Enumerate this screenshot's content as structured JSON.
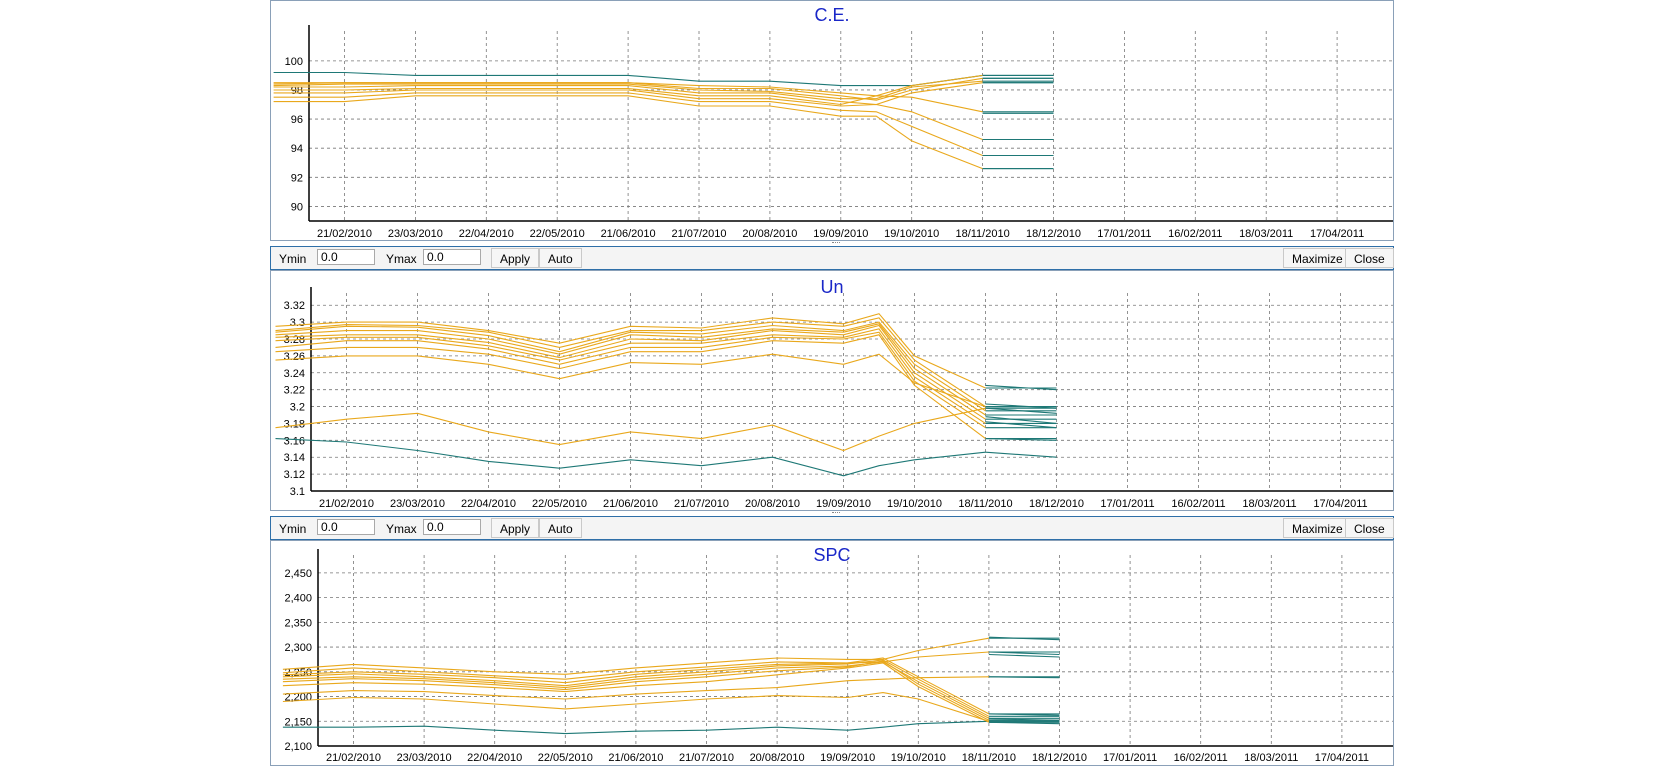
{
  "toolbar": {
    "ymin_label": "Ymin",
    "ymin_value": "0.0",
    "ymax_label": "Ymax",
    "ymax_value": "0.0",
    "apply_label": "Apply",
    "auto_label": "Auto",
    "maximize_label": "Maximize",
    "close_label": "Close"
  },
  "colors": {
    "orange": "#e9a81c",
    "teal": "#1e7876",
    "title": "#1a27c8"
  },
  "chart_data": [
    {
      "type": "line",
      "title": "C.E.",
      "xlabel": "",
      "ylabel": "",
      "x_ticks": [
        "21/02/2010",
        "23/03/2010",
        "22/04/2010",
        "22/05/2010",
        "21/06/2010",
        "21/07/2010",
        "20/08/2010",
        "19/09/2010",
        "19/10/2010",
        "18/11/2010",
        "18/12/2010",
        "17/01/2011",
        "16/02/2011",
        "18/03/2011",
        "17/04/2011"
      ],
      "y_ticks": [
        "90",
        "92",
        "94",
        "96",
        "98",
        "100"
      ],
      "ylim": [
        89,
        101.5
      ],
      "grid": true,
      "x_dates": [
        "2010-01-22",
        "2010-02-21",
        "2010-03-23",
        "2010-04-22",
        "2010-05-22",
        "2010-06-21",
        "2010-07-21",
        "2010-08-20",
        "2010-09-19",
        "2010-10-04",
        "2010-10-19",
        "2010-11-18",
        "2010-12-18"
      ],
      "series": [
        {
          "color": "orange",
          "values": [
            98.5,
            98.5,
            98.5,
            98.5,
            98.5,
            98.5,
            98.3,
            98.2,
            97.8,
            97.6,
            98.3,
            99.0,
            99.0
          ]
        },
        {
          "color": "orange",
          "values": [
            98.4,
            98.5,
            98.5,
            98.5,
            98.5,
            98.5,
            98.1,
            98.1,
            97.6,
            97.3,
            98.0,
            98.8,
            98.8
          ]
        },
        {
          "color": "orange",
          "values": [
            98.3,
            98.4,
            98.4,
            98.4,
            98.4,
            98.4,
            98.0,
            97.9,
            97.4,
            97.4,
            98.2,
            98.6,
            98.6
          ]
        },
        {
          "color": "orange",
          "values": [
            98.2,
            98.2,
            98.3,
            98.3,
            98.3,
            98.3,
            97.8,
            97.8,
            97.2,
            97.0,
            97.8,
            98.5,
            98.5
          ]
        },
        {
          "color": "orange",
          "values": [
            98.0,
            98.0,
            98.1,
            98.1,
            98.1,
            98.1,
            97.6,
            97.6,
            97.0,
            97.6,
            97.5,
            96.5,
            96.5
          ]
        },
        {
          "color": "orange",
          "values": [
            97.8,
            97.8,
            98.0,
            98.0,
            98.0,
            98.0,
            97.4,
            97.4,
            96.9,
            97.0,
            96.5,
            94.6,
            94.6
          ]
        },
        {
          "color": "orange",
          "values": [
            97.5,
            97.5,
            97.8,
            97.8,
            97.8,
            97.8,
            97.2,
            97.2,
            96.6,
            96.5,
            95.5,
            93.5,
            93.5
          ]
        },
        {
          "color": "orange",
          "values": [
            97.2,
            97.2,
            97.6,
            97.6,
            97.6,
            97.6,
            96.9,
            96.9,
            96.2,
            96.2,
            94.5,
            92.6,
            92.6
          ]
        },
        {
          "color": "teal",
          "values": [
            99.2,
            99.2,
            99.0,
            99.0,
            99.0,
            99.0,
            98.6,
            98.6,
            98.3,
            98.3,
            98.3,
            99.0,
            99.0
          ]
        },
        {
          "color": "teal",
          "values": [
            null,
            null,
            null,
            null,
            null,
            null,
            null,
            null,
            null,
            null,
            null,
            98.8,
            98.8
          ]
        },
        {
          "color": "teal",
          "values": [
            null,
            null,
            null,
            null,
            null,
            null,
            null,
            null,
            null,
            null,
            null,
            98.5,
            98.5
          ]
        },
        {
          "color": "teal",
          "values": [
            null,
            null,
            null,
            null,
            null,
            null,
            null,
            null,
            null,
            null,
            null,
            96.4,
            96.4
          ]
        },
        {
          "color": "teal",
          "values": [
            null,
            null,
            null,
            null,
            null,
            null,
            null,
            null,
            null,
            null,
            null,
            94.6,
            94.6
          ]
        },
        {
          "color": "teal",
          "values": [
            null,
            null,
            null,
            null,
            null,
            null,
            null,
            null,
            null,
            null,
            null,
            93.5,
            93.5
          ]
        },
        {
          "color": "teal",
          "values": [
            null,
            null,
            null,
            null,
            null,
            null,
            null,
            null,
            null,
            null,
            null,
            92.6,
            92.6
          ]
        }
      ]
    },
    {
      "type": "line",
      "title": "Un",
      "xlabel": "",
      "ylabel": "",
      "x_ticks": [
        "21/02/2010",
        "23/03/2010",
        "22/04/2010",
        "22/05/2010",
        "21/06/2010",
        "21/07/2010",
        "20/08/2010",
        "19/09/2010",
        "19/10/2010",
        "18/11/2010",
        "18/12/2010",
        "17/01/2011",
        "16/02/2011",
        "18/03/2011",
        "17/04/2011"
      ],
      "y_ticks": [
        "3.1",
        "3.12",
        "3.14",
        "3.16",
        "3.18",
        "3.2",
        "3.22",
        "3.24",
        "3.26",
        "3.28",
        "3.3",
        "3.32"
      ],
      "ylim": [
        3.1,
        3.325
      ],
      "grid": true,
      "x_dates": [
        "2010-01-22",
        "2010-02-21",
        "2010-03-23",
        "2010-04-22",
        "2010-05-22",
        "2010-06-21",
        "2010-07-21",
        "2010-08-20",
        "2010-09-19",
        "2010-10-04",
        "2010-10-19",
        "2010-11-18",
        "2010-12-18"
      ],
      "series": [
        {
          "color": "orange",
          "values": [
            3.295,
            3.3,
            3.3,
            3.29,
            3.275,
            3.295,
            3.293,
            3.305,
            3.298,
            3.31,
            3.26,
            3.222,
            3.222
          ]
        },
        {
          "color": "orange",
          "values": [
            3.29,
            3.297,
            3.296,
            3.288,
            3.27,
            3.29,
            3.29,
            3.3,
            3.295,
            3.305,
            3.255,
            3.2,
            3.2
          ]
        },
        {
          "color": "orange",
          "values": [
            3.288,
            3.295,
            3.294,
            3.284,
            3.265,
            3.288,
            3.286,
            3.296,
            3.29,
            3.3,
            3.25,
            3.195,
            3.195
          ]
        },
        {
          "color": "orange",
          "values": [
            3.285,
            3.29,
            3.29,
            3.28,
            3.262,
            3.285,
            3.282,
            3.292,
            3.288,
            3.298,
            3.245,
            3.19,
            3.19
          ]
        },
        {
          "color": "orange",
          "values": [
            3.282,
            3.285,
            3.285,
            3.276,
            3.258,
            3.28,
            3.278,
            3.29,
            3.285,
            3.296,
            3.24,
            3.185,
            3.185
          ]
        },
        {
          "color": "orange",
          "values": [
            3.278,
            3.282,
            3.282,
            3.272,
            3.255,
            3.275,
            3.275,
            3.285,
            3.282,
            3.292,
            3.235,
            3.18,
            3.18
          ]
        },
        {
          "color": "orange",
          "values": [
            3.27,
            3.278,
            3.278,
            3.268,
            3.25,
            3.27,
            3.27,
            3.282,
            3.28,
            3.288,
            3.23,
            3.175,
            3.175
          ]
        },
        {
          "color": "orange",
          "values": [
            3.265,
            3.27,
            3.27,
            3.262,
            3.245,
            3.265,
            3.265,
            3.278,
            3.275,
            3.285,
            3.225,
            3.162,
            3.162
          ]
        },
        {
          "color": "orange",
          "values": [
            3.255,
            3.26,
            3.26,
            3.25,
            3.233,
            3.252,
            3.25,
            3.262,
            3.25,
            3.262,
            3.228,
            3.2,
            3.2
          ]
        },
        {
          "color": "orange",
          "values": [
            3.175,
            3.185,
            3.192,
            3.17,
            3.155,
            3.17,
            3.162,
            3.178,
            3.148,
            3.165,
            3.18,
            3.198,
            3.198
          ]
        },
        {
          "color": "teal",
          "values": [
            3.162,
            3.158,
            3.148,
            3.135,
            3.127,
            3.137,
            3.13,
            3.14,
            3.118,
            3.13,
            3.137,
            3.146,
            3.14
          ]
        },
        {
          "color": "teal",
          "values": [
            null,
            null,
            null,
            null,
            null,
            null,
            null,
            null,
            null,
            null,
            null,
            3.225,
            3.22
          ]
        },
        {
          "color": "teal",
          "values": [
            null,
            null,
            null,
            null,
            null,
            null,
            null,
            null,
            null,
            null,
            null,
            3.203,
            3.198
          ]
        },
        {
          "color": "teal",
          "values": [
            null,
            null,
            null,
            null,
            null,
            null,
            null,
            null,
            null,
            null,
            null,
            3.198,
            3.192
          ]
        },
        {
          "color": "teal",
          "values": [
            null,
            null,
            null,
            null,
            null,
            null,
            null,
            null,
            null,
            null,
            null,
            3.188,
            3.18
          ]
        },
        {
          "color": "teal",
          "values": [
            null,
            null,
            null,
            null,
            null,
            null,
            null,
            null,
            null,
            null,
            null,
            3.182,
            3.175
          ]
        },
        {
          "color": "teal",
          "values": [
            null,
            null,
            null,
            null,
            null,
            null,
            null,
            null,
            null,
            null,
            null,
            3.162,
            3.16
          ]
        }
      ]
    },
    {
      "type": "line",
      "title": "SPC",
      "xlabel": "",
      "ylabel": "",
      "x_ticks": [
        "21/02/2010",
        "23/03/2010",
        "22/04/2010",
        "22/05/2010",
        "21/06/2010",
        "21/07/2010",
        "20/08/2010",
        "19/09/2010",
        "19/10/2010",
        "18/11/2010",
        "18/12/2010",
        "17/01/2011",
        "16/02/2011",
        "18/03/2011",
        "17/04/2011"
      ],
      "y_ticks": [
        "2,100",
        "2,150",
        "2,200",
        "2,250",
        "2,300",
        "2,350",
        "2,400",
        "2,450"
      ],
      "ylim": [
        2100,
        2470
      ],
      "grid": true,
      "x_dates": [
        "2010-01-22",
        "2010-02-21",
        "2010-03-23",
        "2010-04-22",
        "2010-05-22",
        "2010-06-21",
        "2010-07-21",
        "2010-08-20",
        "2010-09-19",
        "2010-10-04",
        "2010-10-19",
        "2010-11-18",
        "2010-12-18"
      ],
      "series": [
        {
          "color": "orange",
          "values": [
            2255,
            2265,
            2258,
            2250,
            2245,
            2258,
            2268,
            2278,
            2275,
            2275,
            2293,
            2318,
            2318
          ]
        },
        {
          "color": "orange",
          "values": [
            2248,
            2258,
            2250,
            2242,
            2235,
            2250,
            2260,
            2270,
            2268,
            2270,
            2280,
            2290,
            2290
          ]
        },
        {
          "color": "orange",
          "values": [
            2244,
            2250,
            2245,
            2238,
            2228,
            2245,
            2255,
            2265,
            2268,
            2278,
            2240,
            2165,
            2165
          ]
        },
        {
          "color": "orange",
          "values": [
            2240,
            2246,
            2240,
            2232,
            2222,
            2240,
            2250,
            2262,
            2266,
            2274,
            2235,
            2160,
            2160
          ]
        },
        {
          "color": "orange",
          "values": [
            2235,
            2240,
            2236,
            2228,
            2218,
            2235,
            2245,
            2258,
            2262,
            2270,
            2230,
            2156,
            2156
          ]
        },
        {
          "color": "orange",
          "values": [
            2230,
            2236,
            2232,
            2224,
            2214,
            2230,
            2240,
            2252,
            2260,
            2272,
            2225,
            2152,
            2152
          ]
        },
        {
          "color": "orange",
          "values": [
            2222,
            2228,
            2225,
            2218,
            2210,
            2222,
            2230,
            2244,
            2258,
            2268,
            2220,
            2148,
            2148
          ]
        },
        {
          "color": "orange",
          "values": [
            2205,
            2212,
            2210,
            2202,
            2195,
            2205,
            2212,
            2218,
            2232,
            2235,
            2238,
            2240,
            2240
          ]
        },
        {
          "color": "orange",
          "values": [
            2190,
            2198,
            2195,
            2185,
            2175,
            2185,
            2195,
            2202,
            2198,
            2208,
            2195,
            2150,
            2150
          ]
        },
        {
          "color": "teal",
          "values": [
            2138,
            2138,
            2140,
            2132,
            2125,
            2130,
            2132,
            2138,
            2132,
            2138,
            2145,
            2150,
            2150
          ]
        },
        {
          "color": "teal",
          "values": [
            null,
            null,
            null,
            null,
            null,
            null,
            null,
            null,
            null,
            null,
            null,
            2320,
            2315
          ]
        },
        {
          "color": "teal",
          "values": [
            null,
            null,
            null,
            null,
            null,
            null,
            null,
            null,
            null,
            null,
            null,
            2290,
            2285
          ]
        },
        {
          "color": "teal",
          "values": [
            null,
            null,
            null,
            null,
            null,
            null,
            null,
            null,
            null,
            null,
            null,
            2285,
            2280
          ]
        },
        {
          "color": "teal",
          "values": [
            null,
            null,
            null,
            null,
            null,
            null,
            null,
            null,
            null,
            null,
            null,
            2240,
            2238
          ]
        },
        {
          "color": "teal",
          "values": [
            null,
            null,
            null,
            null,
            null,
            null,
            null,
            null,
            null,
            null,
            null,
            2165,
            2162
          ]
        },
        {
          "color": "teal",
          "values": [
            null,
            null,
            null,
            null,
            null,
            null,
            null,
            null,
            null,
            null,
            null,
            2155,
            2152
          ]
        },
        {
          "color": "teal",
          "values": [
            null,
            null,
            null,
            null,
            null,
            null,
            null,
            null,
            null,
            null,
            null,
            2148,
            2145
          ]
        }
      ]
    }
  ]
}
